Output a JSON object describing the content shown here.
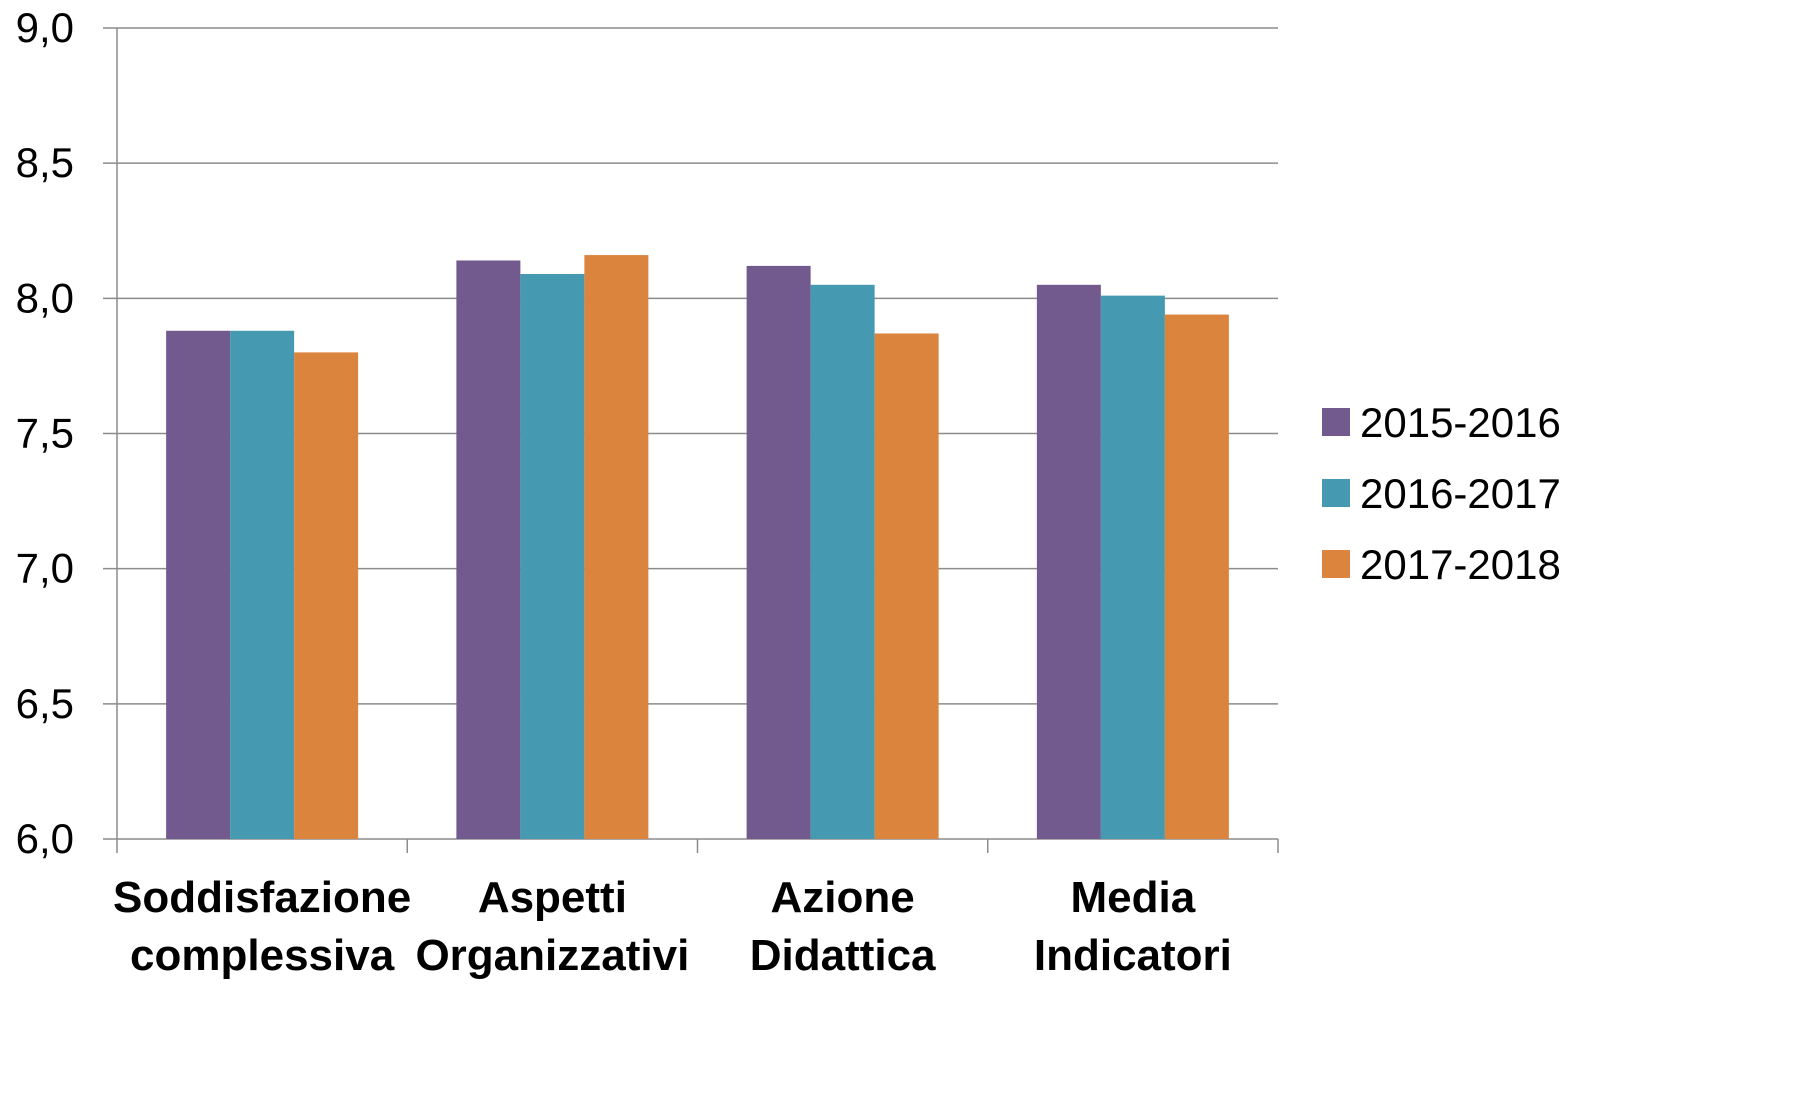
{
  "chart_data": {
    "type": "bar",
    "title": "",
    "xlabel": "",
    "ylabel": "",
    "ylim": [
      6.0,
      9.0
    ],
    "yticks": [
      "6,0",
      "6,5",
      "7,0",
      "7,5",
      "8,0",
      "8,5",
      "9,0"
    ],
    "ytick_values": [
      6.0,
      6.5,
      7.0,
      7.5,
      8.0,
      8.5,
      9.0
    ],
    "grid": "horizontal",
    "legend_position": "right",
    "categories": [
      [
        "Soddisfazione",
        "complessiva"
      ],
      [
        "Aspetti",
        "Organizzativi"
      ],
      [
        "Azione",
        "Didattica"
      ],
      [
        "Media",
        "Indicatori"
      ]
    ],
    "series": [
      {
        "name": "2015-2016",
        "color": "#725A8F",
        "values": [
          7.88,
          8.14,
          8.12,
          8.05
        ]
      },
      {
        "name": "2016-2017",
        "color": "#4599B0",
        "values": [
          7.88,
          8.09,
          8.05,
          8.01
        ]
      },
      {
        "name": "2017-2018",
        "color": "#DB843D",
        "values": [
          7.8,
          8.16,
          7.87,
          7.94
        ]
      }
    ]
  }
}
